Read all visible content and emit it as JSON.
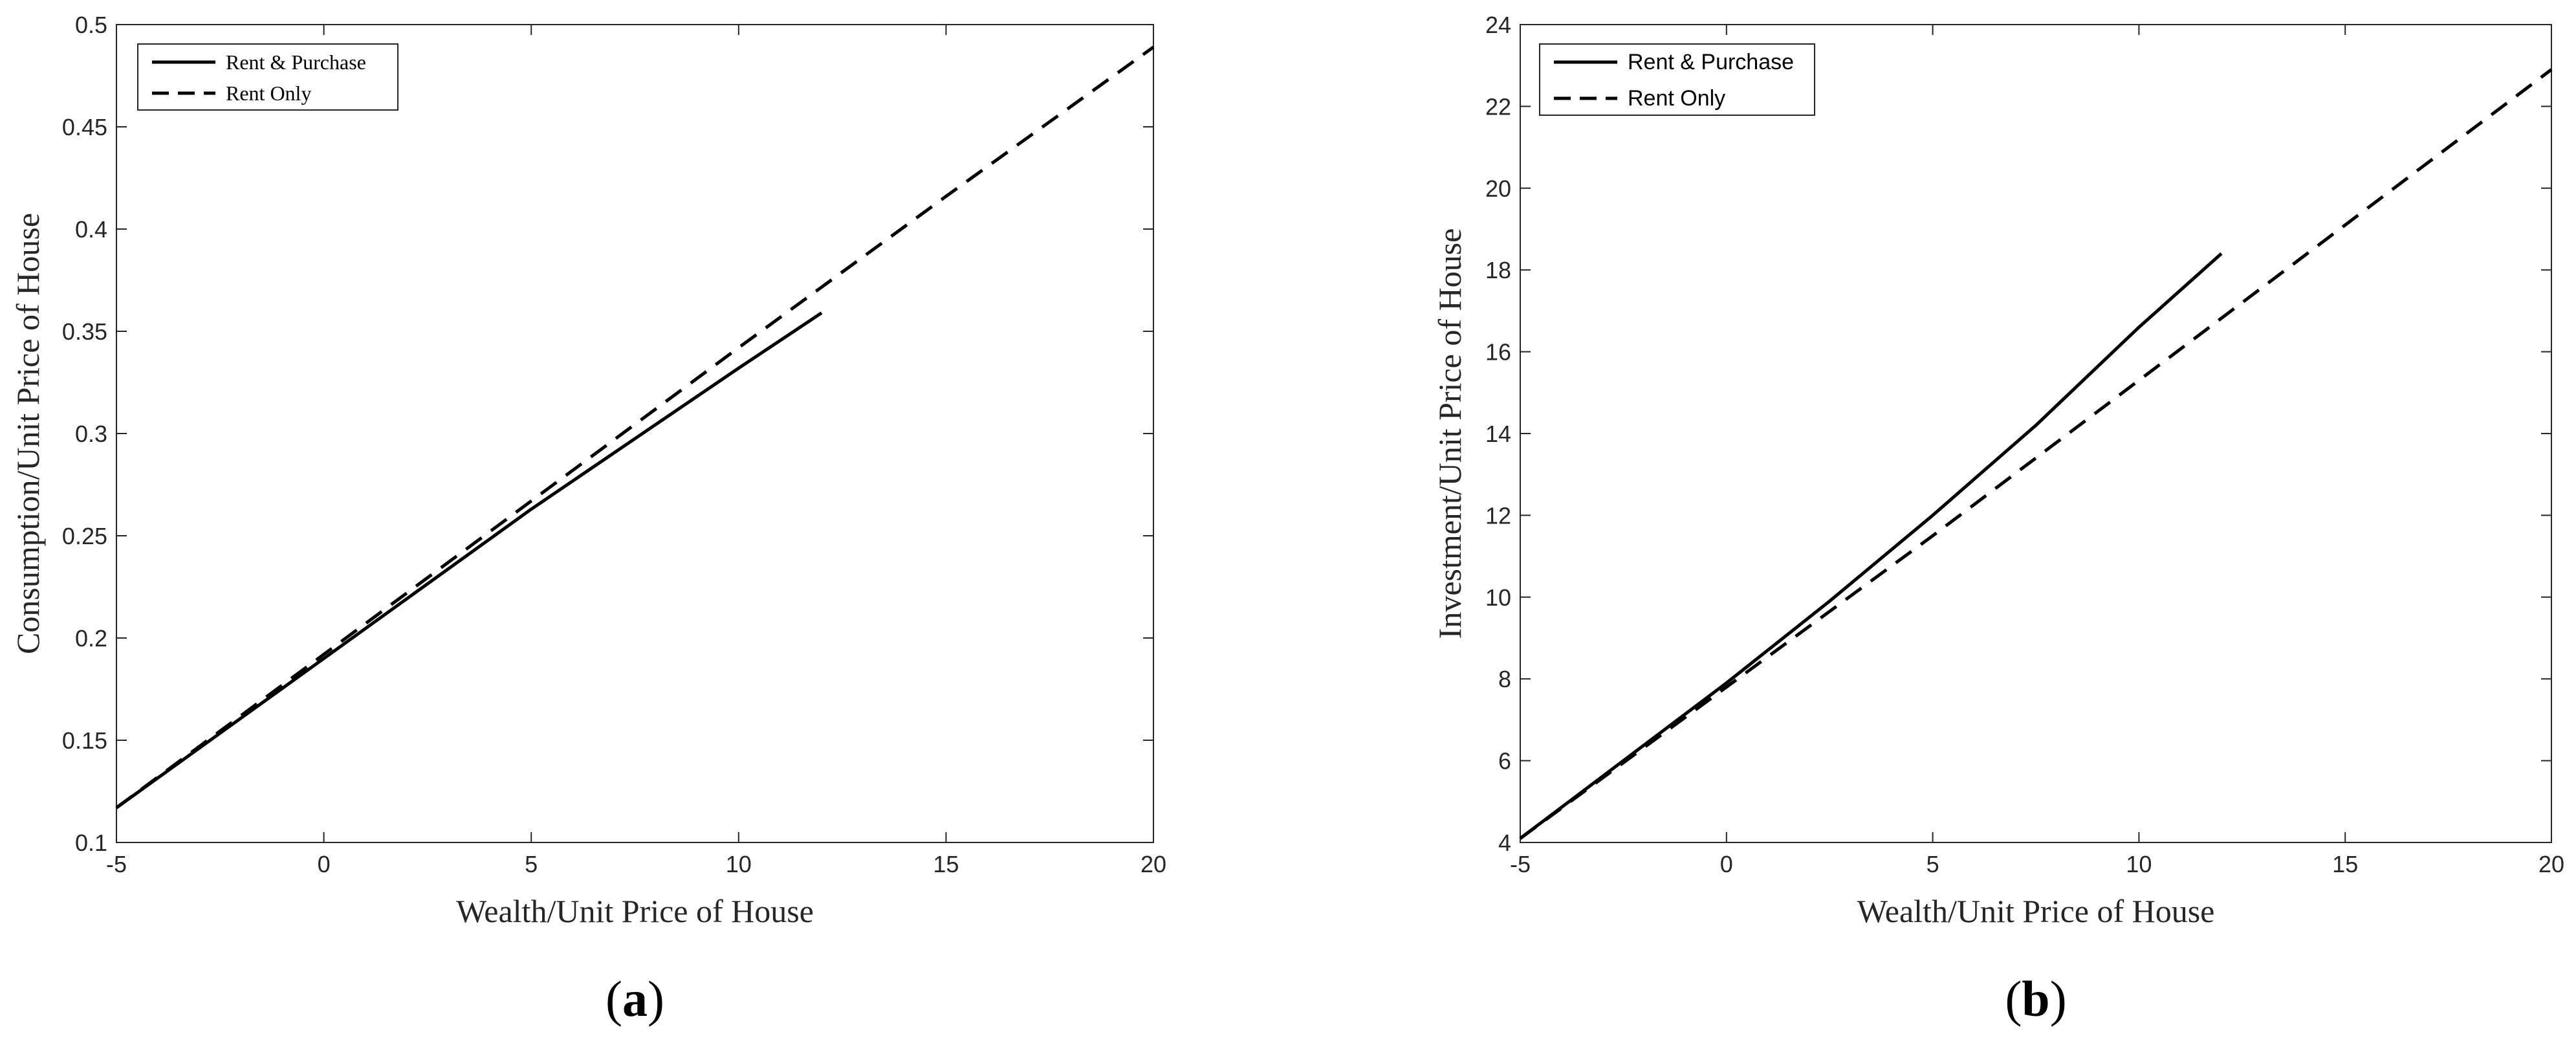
{
  "chart_data": [
    {
      "type": "line",
      "panel_label_open": "(",
      "panel_label_letter": "a",
      "panel_label_close": ")",
      "xlabel": "Wealth/Unit Price of House",
      "ylabel": "Consumption/Unit Price of House",
      "xlim": [
        -5,
        20
      ],
      "ylim": [
        0.1,
        0.5
      ],
      "xticks": [
        -5,
        0,
        5,
        10,
        15,
        20
      ],
      "yticks": [
        0.1,
        0.15,
        0.2,
        0.25,
        0.3,
        0.35,
        0.4,
        0.45,
        0.5
      ],
      "yticklabels": [
        "0.1",
        "0.15",
        "0.2",
        "0.25",
        "0.3",
        "0.35",
        "0.4",
        "0.45",
        "0.5"
      ],
      "legend_position": "top-left",
      "grid": false,
      "series": [
        {
          "name": "Rent & Purchase",
          "style": "solid",
          "x": [
            -5,
            0,
            5,
            10,
            12
          ],
          "y": [
            0.117,
            0.19,
            0.263,
            0.332,
            0.359
          ]
        },
        {
          "name": "Rent Only",
          "style": "dashed",
          "x": [
            -5,
            0,
            5,
            10,
            15,
            20
          ],
          "y": [
            0.117,
            0.192,
            0.267,
            0.342,
            0.416,
            0.489
          ]
        }
      ]
    },
    {
      "type": "line",
      "panel_label_open": "(",
      "panel_label_letter": "b",
      "panel_label_close": ")",
      "xlabel": "Wealth/Unit Price of House",
      "ylabel": "Investment/Unit Price of House",
      "xlim": [
        -5,
        20
      ],
      "ylim": [
        4,
        24
      ],
      "xticks": [
        -5,
        0,
        5,
        10,
        15,
        20
      ],
      "yticks": [
        4,
        6,
        8,
        10,
        12,
        14,
        16,
        18,
        20,
        22,
        24
      ],
      "yticklabels": [
        "4",
        "6",
        "8",
        "10",
        "12",
        "14",
        "16",
        "18",
        "20",
        "22",
        "24"
      ],
      "legend_position": "top-left",
      "grid": false,
      "series": [
        {
          "name": "Rent & Purchase",
          "style": "solid",
          "x": [
            -5,
            -2.5,
            0,
            2.5,
            5,
            7.5,
            10,
            12
          ],
          "y": [
            4.1,
            6.0,
            7.9,
            9.9,
            12.0,
            14.2,
            16.6,
            18.4
          ]
        },
        {
          "name": "Rent Only",
          "style": "dashed",
          "x": [
            -5,
            0,
            5,
            10,
            15,
            20
          ],
          "y": [
            4.1,
            7.8,
            11.5,
            15.3,
            19.1,
            22.9
          ]
        }
      ]
    }
  ]
}
